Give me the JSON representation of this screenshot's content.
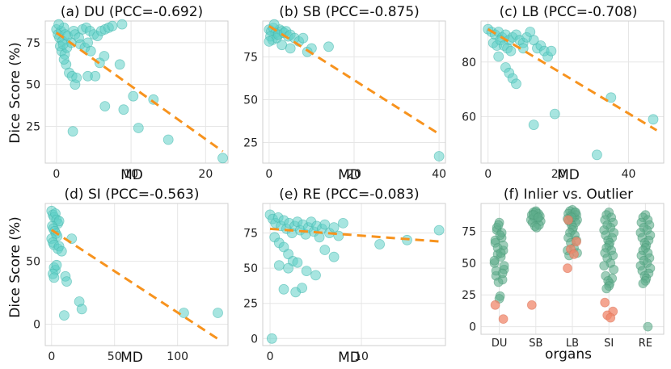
{
  "ylabel": "Dice Score (%)",
  "chart_data": [
    {
      "type": "scatter",
      "title": "(a) DU (PCC=-0.692)",
      "xlabel": "MD",
      "xlim": [
        -1.5,
        23
      ],
      "ylim": [
        3,
        88
      ],
      "xticks": [
        0,
        10,
        20
      ],
      "yticks": [
        25,
        50,
        75
      ],
      "trend": [
        [
          0,
          81
        ],
        [
          22.3,
          10
        ]
      ],
      "points": [
        [
          0,
          83
        ],
        [
          0.2,
          80
        ],
        [
          0.4,
          78
        ],
        [
          0.6,
          82
        ],
        [
          0.8,
          76
        ],
        [
          1,
          84
        ],
        [
          0.3,
          86
        ],
        [
          0.5,
          73
        ],
        [
          1.2,
          80
        ],
        [
          1.5,
          79
        ],
        [
          0.7,
          70
        ],
        [
          1.1,
          68
        ],
        [
          1.4,
          72
        ],
        [
          2,
          75
        ],
        [
          2.3,
          82
        ],
        [
          2.5,
          80
        ],
        [
          3,
          78
        ],
        [
          3.5,
          83
        ],
        [
          4,
          84
        ],
        [
          4.5,
          82
        ],
        [
          5,
          80
        ],
        [
          5.5,
          79
        ],
        [
          6,
          82
        ],
        [
          6.5,
          83
        ],
        [
          7,
          84
        ],
        [
          7.5,
          85
        ],
        [
          8.8,
          86
        ],
        [
          3.2,
          74
        ],
        [
          3.8,
          72
        ],
        [
          4.2,
          75
        ],
        [
          4.6,
          70
        ],
        [
          1.3,
          62
        ],
        [
          1.7,
          57
        ],
        [
          2.1,
          55
        ],
        [
          2.5,
          50
        ],
        [
          2.7,
          54
        ],
        [
          4.2,
          55
        ],
        [
          5.2,
          55
        ],
        [
          5.8,
          63
        ],
        [
          6.4,
          67
        ],
        [
          8.5,
          62
        ],
        [
          1,
          65
        ],
        [
          0.9,
          74
        ],
        [
          2.2,
          22
        ],
        [
          6.5,
          37
        ],
        [
          9,
          35
        ],
        [
          10.3,
          43
        ],
        [
          11,
          24
        ],
        [
          13,
          41
        ],
        [
          15,
          17
        ],
        [
          22.3,
          6
        ]
      ]
    },
    {
      "type": "scatter",
      "title": "(b) SB (PCC=-0.875)",
      "xlabel": "MD",
      "xlim": [
        -1.5,
        41.5
      ],
      "ylim": [
        13,
        96
      ],
      "xticks": [
        0,
        20,
        40
      ],
      "yticks": [
        25,
        50,
        75
      ],
      "trend": [
        [
          0,
          93
        ],
        [
          40,
          30
        ]
      ],
      "points": [
        [
          0,
          91
        ],
        [
          0.5,
          90
        ],
        [
          1,
          92
        ],
        [
          1.5,
          89
        ],
        [
          2,
          88
        ],
        [
          2.5,
          91
        ],
        [
          3,
          90
        ],
        [
          0.3,
          87
        ],
        [
          0.8,
          85
        ],
        [
          1.2,
          94
        ],
        [
          1.8,
          86
        ],
        [
          2.2,
          88
        ],
        [
          3.5,
          89
        ],
        [
          4,
          90
        ],
        [
          4.5,
          87
        ],
        [
          5,
          88
        ],
        [
          6,
          86
        ],
        [
          0,
          84
        ],
        [
          3,
          82
        ],
        [
          5,
          80
        ],
        [
          7,
          84
        ],
        [
          8,
          86
        ],
        [
          9,
          78
        ],
        [
          10,
          80
        ],
        [
          14,
          81
        ],
        [
          40,
          17
        ]
      ]
    },
    {
      "type": "scatter",
      "title": "(c) LB (PCC=-0.708)",
      "xlabel": "MD",
      "xlim": [
        -2,
        50
      ],
      "ylim": [
        43,
        95
      ],
      "xticks": [
        0,
        20,
        40
      ],
      "yticks": [
        60,
        80
      ],
      "trend": [
        [
          0,
          92
        ],
        [
          48,
          55
        ]
      ],
      "points": [
        [
          0,
          92
        ],
        [
          1,
          91
        ],
        [
          2,
          90
        ],
        [
          3,
          91
        ],
        [
          4,
          89
        ],
        [
          5,
          90
        ],
        [
          6,
          88
        ],
        [
          7,
          89
        ],
        [
          8,
          90
        ],
        [
          9,
          88
        ],
        [
          10,
          87
        ],
        [
          11,
          89
        ],
        [
          12,
          91
        ],
        [
          1.5,
          87
        ],
        [
          2.5,
          86
        ],
        [
          3.5,
          88
        ],
        [
          4.5,
          86
        ],
        [
          5.5,
          85
        ],
        [
          6.5,
          84
        ],
        [
          3,
          82
        ],
        [
          5,
          78
        ],
        [
          6,
          76
        ],
        [
          7,
          74
        ],
        [
          8,
          72
        ],
        [
          10,
          85
        ],
        [
          13,
          88
        ],
        [
          14,
          85
        ],
        [
          15,
          86
        ],
        [
          16,
          84
        ],
        [
          17,
          82
        ],
        [
          18,
          84
        ],
        [
          13,
          57
        ],
        [
          19,
          61
        ],
        [
          31,
          46
        ],
        [
          35,
          67
        ],
        [
          47,
          59
        ]
      ]
    },
    {
      "type": "scatter",
      "title": "(d) SI (PCC=-0.563)",
      "xlabel": "MD",
      "xlim": [
        -5,
        140
      ],
      "ylim": [
        -17,
        96
      ],
      "xticks": [
        0,
        50,
        100
      ],
      "yticks": [
        0,
        50
      ],
      "trend": [
        [
          0,
          75
        ],
        [
          134,
          -13
        ]
      ],
      "points": [
        [
          0,
          90
        ],
        [
          1,
          87
        ],
        [
          2,
          85
        ],
        [
          3,
          88
        ],
        [
          4,
          83
        ],
        [
          5,
          80
        ],
        [
          6,
          82
        ],
        [
          0.5,
          78
        ],
        [
          1.5,
          76
        ],
        [
          2.5,
          74
        ],
        [
          3.5,
          72
        ],
        [
          4.5,
          70
        ],
        [
          0,
          68
        ],
        [
          1,
          65
        ],
        [
          2,
          63
        ],
        [
          5,
          60
        ],
        [
          6,
          62
        ],
        [
          8,
          58
        ],
        [
          2,
          45
        ],
        [
          3,
          43
        ],
        [
          4,
          47
        ],
        [
          1,
          40
        ],
        [
          2,
          37
        ],
        [
          11,
          38
        ],
        [
          12,
          34
        ],
        [
          16,
          68
        ],
        [
          10,
          7
        ],
        [
          22,
          18
        ],
        [
          24,
          12
        ],
        [
          105,
          9
        ],
        [
          132,
          9
        ]
      ]
    },
    {
      "type": "scatter",
      "title": "(e) RE (PCC=-0.083)",
      "xlabel": "MD",
      "xlim": [
        -0.8,
        19.2
      ],
      "ylim": [
        -5,
        96
      ],
      "xticks": [
        0,
        10
      ],
      "yticks": [
        0,
        25,
        50,
        75
      ],
      "trend": [
        [
          0,
          78
        ],
        [
          18.5,
          69
        ]
      ],
      "points": [
        [
          0,
          88
        ],
        [
          0.3,
          85
        ],
        [
          0.6,
          82
        ],
        [
          0.9,
          86
        ],
        [
          1.2,
          80
        ],
        [
          1.5,
          84
        ],
        [
          1.8,
          78
        ],
        [
          2.1,
          82
        ],
        [
          2.4,
          75
        ],
        [
          2.7,
          80
        ],
        [
          3,
          83
        ],
        [
          3.3,
          77
        ],
        [
          3.6,
          81
        ],
        [
          3.9,
          74
        ],
        [
          4.2,
          79
        ],
        [
          4.5,
          83
        ],
        [
          4.8,
          76
        ],
        [
          5.1,
          80
        ],
        [
          5.4,
          72
        ],
        [
          5.7,
          78
        ],
        [
          6,
          81
        ],
        [
          6.5,
          75
        ],
        [
          7,
          79
        ],
        [
          7.5,
          73
        ],
        [
          8,
          82
        ],
        [
          0.5,
          72
        ],
        [
          1,
          68
        ],
        [
          1.5,
          65
        ],
        [
          2,
          60
        ],
        [
          2.5,
          55
        ],
        [
          1,
          52
        ],
        [
          2,
          50
        ],
        [
          3,
          54
        ],
        [
          4,
          48
        ],
        [
          5,
          45
        ],
        [
          6,
          63
        ],
        [
          7,
          58
        ],
        [
          1.5,
          35
        ],
        [
          2.8,
          33
        ],
        [
          3.5,
          36
        ],
        [
          12,
          67
        ],
        [
          15,
          70
        ],
        [
          18.5,
          77
        ],
        [
          0.2,
          0
        ]
      ]
    },
    {
      "type": "scatter",
      "title": "(f) Inlier vs. Outlier",
      "xlabel": "organs",
      "categories": [
        "DU",
        "SB",
        "LB",
        "SI",
        "RE"
      ],
      "ylim": [
        -6,
        97
      ],
      "yticks": [
        0,
        25,
        50,
        75
      ],
      "colors": {
        "inlier": "#5fae8c",
        "outlier": "#f0876b"
      },
      "inliers": [
        [
          82,
          76,
          70,
          66,
          60,
          57,
          55,
          50,
          45,
          40,
          37,
          35,
          24,
          22,
          78,
          74,
          68,
          64,
          62,
          58,
          52,
          48,
          44,
          42,
          80,
          72
        ],
        [
          91,
          90,
          89,
          88,
          87,
          86,
          85,
          84,
          83,
          82,
          80,
          79,
          78,
          90,
          88,
          86
        ],
        [
          92,
          91,
          90,
          89,
          88,
          87,
          86,
          85,
          84,
          83,
          82,
          80,
          78,
          76,
          74,
          72,
          70,
          68,
          66,
          62,
          60,
          58,
          56,
          90,
          86
        ],
        [
          90,
          88,
          86,
          84,
          82,
          80,
          78,
          76,
          74,
          72,
          70,
          68,
          66,
          64,
          62,
          60,
          58,
          56,
          54,
          50,
          48,
          45,
          40,
          38,
          36,
          34,
          32,
          30
        ],
        [
          88,
          86,
          84,
          82,
          80,
          78,
          76,
          74,
          72,
          70,
          68,
          66,
          64,
          62,
          60,
          58,
          56,
          54,
          52,
          50,
          48,
          46,
          44,
          42,
          40,
          38,
          36,
          34,
          0
        ]
      ],
      "outliers": [
        [
          17,
          6
        ],
        [
          17
        ],
        [
          84,
          67,
          61,
          57,
          46
        ],
        [
          19,
          12,
          9,
          7
        ],
        []
      ]
    }
  ]
}
